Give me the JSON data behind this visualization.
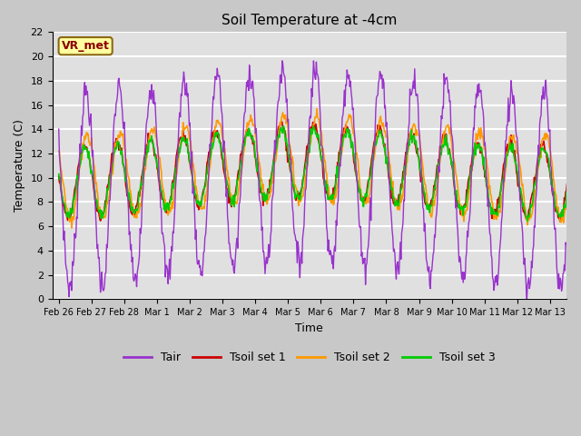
{
  "title": "Soil Temperature at -4cm",
  "xlabel": "Time",
  "ylabel": "Temperature (C)",
  "ylim": [
    0,
    22
  ],
  "annotation_text": "VR_met",
  "annotation_color": "#8B0000",
  "annotation_bg": "#FFFFA0",
  "annotation_border": "#8B6914",
  "fig_bg": "#C8C8C8",
  "plot_bg": "#E0E0E0",
  "grid_color": "#FFFFFF",
  "line_colors": {
    "Tair": "#9933CC",
    "Tsoil1": "#CC0000",
    "Tsoil2": "#FF9900",
    "Tsoil3": "#00CC00"
  },
  "legend_labels": [
    "Tair",
    "Tsoil set 1",
    "Tsoil set 2",
    "Tsoil set 3"
  ],
  "xtick_labels": [
    "Feb 26",
    "Feb 27",
    "Feb 28",
    "Mar 1",
    "Mar 2",
    "Mar 3",
    "Mar 4",
    "Mar 5",
    "Mar 6",
    "Mar 7",
    "Mar 8",
    "Mar 9",
    "Mar 10",
    "Mar 11",
    "Mar 12",
    "Mar 13"
  ],
  "xtick_positions": [
    0,
    1,
    2,
    3,
    4,
    5,
    6,
    7,
    8,
    9,
    10,
    11,
    12,
    13,
    14,
    15
  ],
  "ytick_values": [
    0,
    2,
    4,
    6,
    8,
    10,
    12,
    14,
    16,
    18,
    20,
    22
  ]
}
